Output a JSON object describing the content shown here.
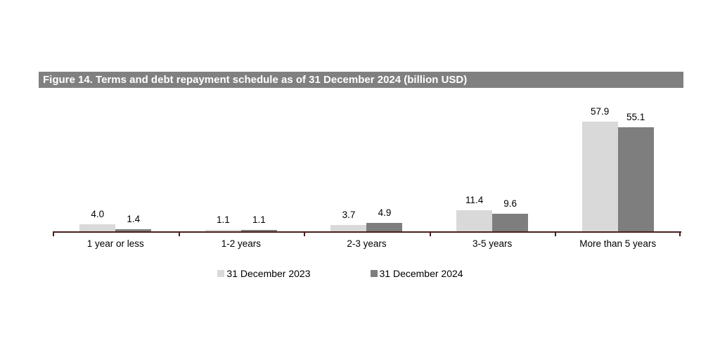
{
  "chart_data": {
    "type": "bar",
    "title": "Figure 14. Terms and debt repayment schedule as of 31 December 2024 (billion USD)",
    "categories": [
      "1 year or less",
      "1-2 years",
      "2-3 years",
      "3-5 years",
      "More than 5 years"
    ],
    "series": [
      {
        "name": "31 December 2023",
        "color": "#d9d9d9",
        "values": [
          4.0,
          1.1,
          3.7,
          11.4,
          57.9
        ]
      },
      {
        "name": "31 December 2024",
        "color": "#7e7e7e",
        "values": [
          1.4,
          1.1,
          4.9,
          9.6,
          55.1
        ]
      }
    ],
    "value_label_decimals": 1,
    "ylim": [
      0,
      60
    ],
    "grid": false,
    "legend_position": "bottom",
    "colors": {
      "title_background": "#808080",
      "title_text": "#ffffff",
      "axis_line": "#4a1f1f",
      "label_text": "#000000"
    }
  }
}
